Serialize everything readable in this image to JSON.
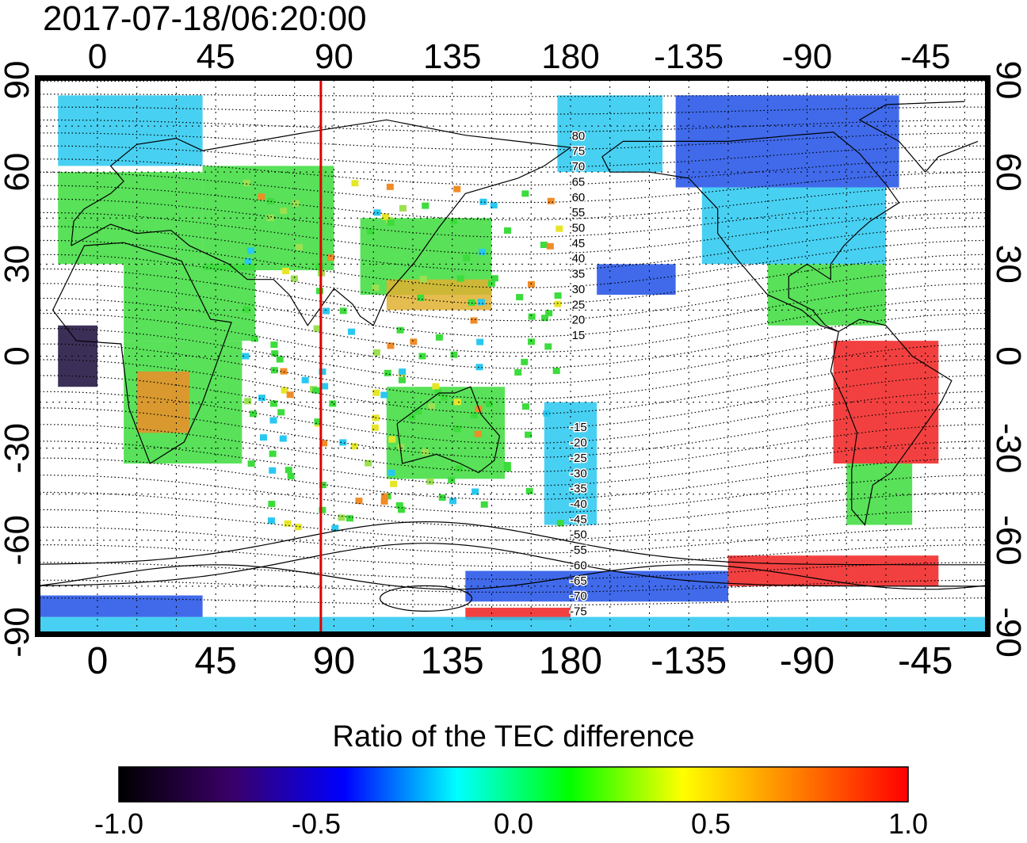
{
  "timestamp": "2017-07-18/06:20:00",
  "axes": {
    "lon_ticks_top": [
      "0",
      "45",
      "90",
      "135",
      "180",
      "-135",
      "-90",
      "-45"
    ],
    "lon_ticks_bottom": [
      "0",
      "45",
      "90",
      "135",
      "180",
      "-135",
      "-90",
      "-45"
    ],
    "lat_ticks_left": [
      "90",
      "60",
      "30",
      "0",
      "-30",
      "-60",
      "-90"
    ],
    "lat_ticks_right": [
      "90",
      "60",
      "30",
      "0",
      "-30",
      "-60",
      "-90"
    ],
    "lon_range": [
      -22,
      338
    ],
    "lat_range": [
      -90,
      90
    ]
  },
  "marker": {
    "longitude": 85,
    "color": "#e00000"
  },
  "contour_labels": [
    "80",
    "75",
    "70",
    "65",
    "60",
    "55",
    "50",
    "45",
    "40",
    "35",
    "30",
    "25",
    "20",
    "15",
    "-15",
    "-20",
    "-25",
    "-30",
    "-35",
    "-40",
    "-45",
    "-50",
    "-55",
    "-60",
    "-65",
    "-70",
    "-75"
  ],
  "colorbar": {
    "title": "Ratio of the TEC difference",
    "min": -1.0,
    "max": 1.0,
    "ticks": [
      "-1.0",
      "-0.5",
      "0.0",
      "0.5",
      "1.0"
    ],
    "colors": [
      "#000000",
      "#3a0068",
      "#0000ff",
      "#00ffff",
      "#00ff00",
      "#ffff00",
      "#ff8000",
      "#ff0000"
    ]
  },
  "palette": {
    "green": "#3cdc3c",
    "cyan": "#28c8f0",
    "blue": "#1e50e6",
    "red": "#f01e1e",
    "yellow": "#e6e628",
    "dark": "#1a0a3a"
  }
}
